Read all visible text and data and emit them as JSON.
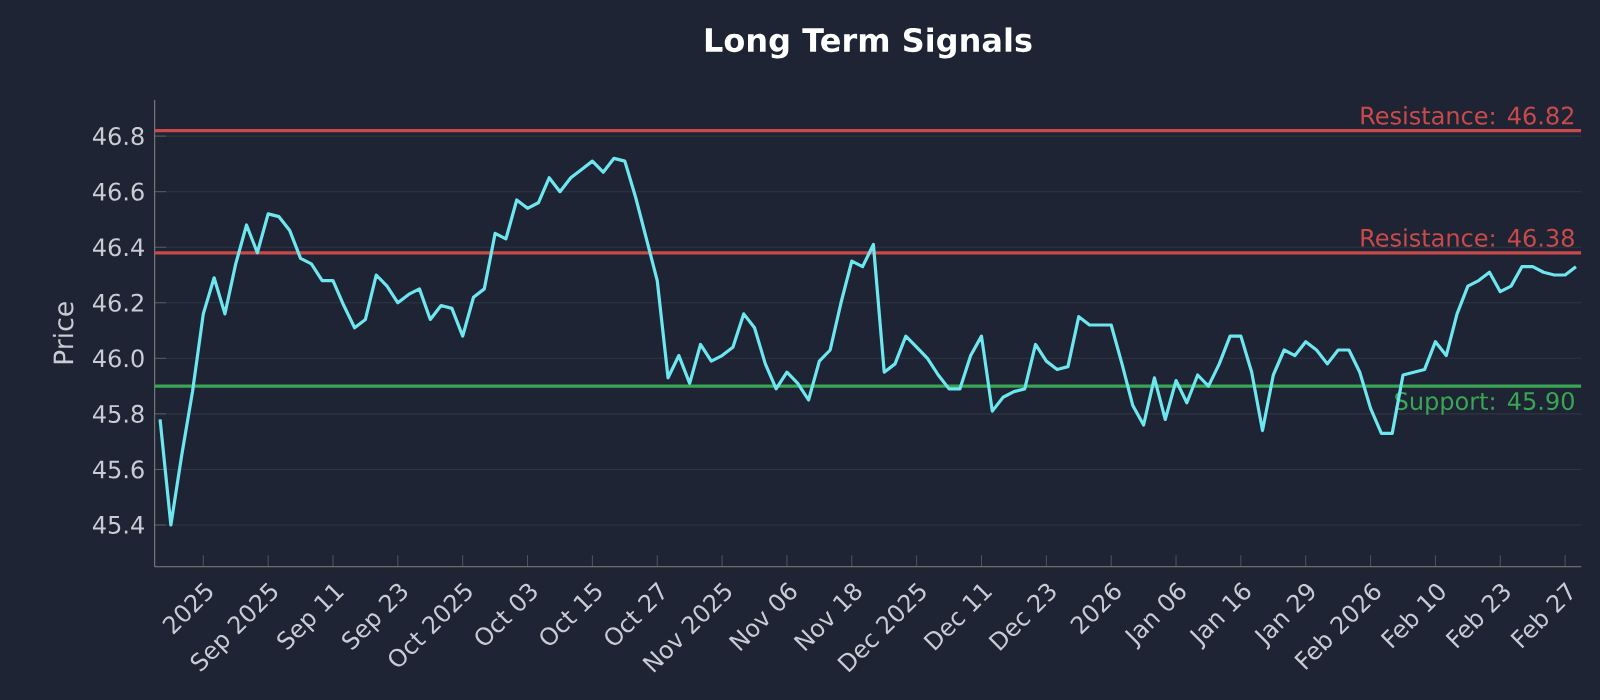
{
  "chart_data": {
    "type": "line",
    "title": "Long Term Signals",
    "ylabel": "Price",
    "categories": [
      null,
      null,
      null,
      null,
      "2025",
      null,
      null,
      null,
      null,
      null,
      "Sep 2025",
      null,
      null,
      null,
      null,
      null,
      "Sep 11",
      null,
      null,
      null,
      null,
      null,
      "Sep 23",
      null,
      null,
      null,
      null,
      null,
      "Oct 2025",
      null,
      null,
      null,
      null,
      null,
      "Oct 03",
      null,
      null,
      null,
      null,
      null,
      "Oct 15",
      null,
      null,
      null,
      null,
      null,
      "Oct 27",
      null,
      null,
      null,
      null,
      null,
      "Nov 2025",
      null,
      null,
      null,
      null,
      null,
      "Nov 06",
      null,
      null,
      null,
      null,
      null,
      "Nov 18",
      null,
      null,
      null,
      null,
      null,
      "Dec 2025",
      null,
      null,
      null,
      null,
      null,
      "Dec 11",
      null,
      null,
      null,
      null,
      null,
      "Dec 23",
      null,
      null,
      null,
      null,
      null,
      "2026",
      null,
      null,
      null,
      null,
      null,
      "Jan 06",
      null,
      null,
      null,
      null,
      null,
      "Jan 16",
      null,
      null,
      null,
      null,
      null,
      "Jan 29",
      null,
      null,
      null,
      null,
      null,
      "Feb 2026",
      null,
      null,
      null,
      null,
      null,
      "Feb 10",
      null,
      null,
      null,
      null,
      null,
      "Feb 23",
      null,
      null,
      null,
      null,
      null,
      "Feb 27",
      null
    ],
    "series": [
      {
        "color": "#6ee6f0",
        "values": [
          45.78,
          45.4,
          45.65,
          45.88,
          46.16,
          46.29,
          46.16,
          46.34,
          46.48,
          46.38,
          46.52,
          46.51,
          46.46,
          46.36,
          46.34,
          46.28,
          46.28,
          46.19,
          46.11,
          46.14,
          46.3,
          46.26,
          46.2,
          46.23,
          46.25,
          46.14,
          46.19,
          46.18,
          46.08,
          46.22,
          46.25,
          46.45,
          46.43,
          46.57,
          46.54,
          46.56,
          46.65,
          46.6,
          46.65,
          46.68,
          46.71,
          46.67,
          46.72,
          46.71,
          46.58,
          46.43,
          46.28,
          45.93,
          46.01,
          45.91,
          46.05,
          45.99,
          46.01,
          46.04,
          46.16,
          46.11,
          45.98,
          45.89,
          45.95,
          45.91,
          45.85,
          45.99,
          46.03,
          46.2,
          46.35,
          46.33,
          46.41,
          45.95,
          45.98,
          46.08,
          46.04,
          46.0,
          45.94,
          45.89,
          45.89,
          46.01,
          46.08,
          45.81,
          45.86,
          45.88,
          45.89,
          46.05,
          45.99,
          45.96,
          45.97,
          46.15,
          46.12,
          46.12,
          46.12,
          45.98,
          45.83,
          45.76,
          45.93,
          45.78,
          45.92,
          45.84,
          45.94,
          45.9,
          45.98,
          46.08,
          46.08,
          45.95,
          45.74,
          45.94,
          46.03,
          46.01,
          46.06,
          46.03,
          45.98,
          46.03,
          46.03,
          45.95,
          45.82,
          45.73,
          45.73,
          45.94,
          45.95,
          45.96,
          46.06,
          46.01,
          46.16,
          46.26,
          46.28,
          46.31,
          46.24,
          46.26,
          46.33,
          46.33,
          46.31,
          46.3,
          46.3,
          46.33
        ]
      }
    ],
    "ylim": [
      45.25,
      46.93
    ],
    "yticks": [
      45.4,
      45.6,
      45.8,
      {
        "value": 46.0,
        "label": "46.0"
      },
      46.2,
      46.4,
      46.6,
      46.8
    ],
    "grid": "y",
    "ref_lines": [
      {
        "axis": "y",
        "value": 46.82,
        "label": "Resistance: 46.82",
        "color": "#c94a4a"
      },
      {
        "axis": "y",
        "value": 46.38,
        "label": "Resistance: 46.38",
        "color": "#c94a4a"
      },
      {
        "axis": "y",
        "value": 45.9,
        "label": "Support: 45.90",
        "color": "#3aa655"
      }
    ]
  }
}
